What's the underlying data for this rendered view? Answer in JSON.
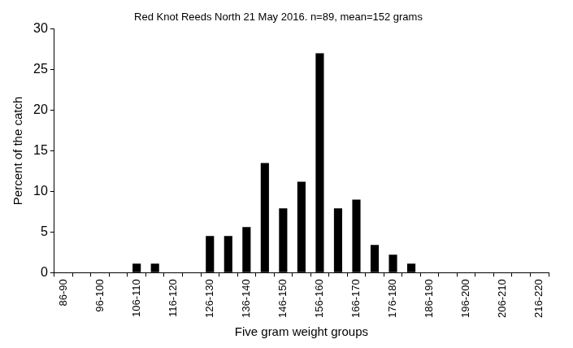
{
  "chart_data": {
    "type": "bar",
    "title": "Red Knot Reeds North 21 May 2016. n=89, mean=152 grams",
    "x_label": "Five gram weight groups",
    "y_label": "Percent of the catch",
    "categories": [
      "86-90",
      null,
      "96-100",
      null,
      "106-110",
      null,
      "116-120",
      null,
      "126-130",
      null,
      "136-140",
      null,
      "146-150",
      null,
      "156-160",
      null,
      "166-170",
      null,
      "176-180",
      null,
      "186-190",
      null,
      "196-200",
      null,
      "206-210",
      null,
      "216-220"
    ],
    "values": [
      0,
      0,
      0,
      0,
      1.1,
      1.1,
      0,
      0,
      4.5,
      4.5,
      5.6,
      13.5,
      7.9,
      11.2,
      27.0,
      7.9,
      9.0,
      3.4,
      2.2,
      1.1,
      0,
      0,
      0,
      0,
      0,
      0,
      0
    ],
    "color": "#000000",
    "ylim": [
      0,
      30
    ],
    "yticks": [
      0,
      5,
      10,
      15,
      20,
      25,
      30
    ],
    "grid": false
  }
}
